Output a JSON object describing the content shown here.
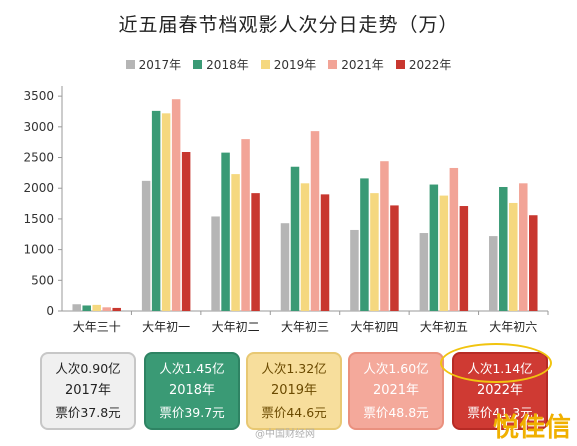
{
  "title": "近五届春节档观影人次分日走势（万）",
  "chart_data": {
    "type": "bar",
    "categories": [
      "大年三十",
      "大年初一",
      "大年初二",
      "大年初三",
      "大年初四",
      "大年初五",
      "大年初六"
    ],
    "series": [
      {
        "name": "2017年",
        "color": "#b5b5b5",
        "values": [
          110,
          2120,
          1540,
          1430,
          1320,
          1270,
          1220
        ]
      },
      {
        "name": "2018年",
        "color": "#3a9a75",
        "values": [
          90,
          3260,
          2580,
          2350,
          2160,
          2060,
          2020
        ]
      },
      {
        "name": "2019年",
        "color": "#f5d87f",
        "values": [
          100,
          3220,
          2230,
          2080,
          1920,
          1880,
          1760
        ]
      },
      {
        "name": "2021年",
        "color": "#f2a497",
        "values": [
          60,
          3450,
          2800,
          2930,
          2440,
          2330,
          2080
        ]
      },
      {
        "name": "2022年",
        "color": "#c8372f",
        "values": [
          50,
          2590,
          1920,
          1900,
          1720,
          1710,
          1560
        ]
      }
    ],
    "y_ticks": [
      0,
      500,
      1000,
      1500,
      2000,
      2500,
      3000,
      3500
    ],
    "ylim": [
      0,
      3600
    ],
    "grid": false,
    "legend": "top"
  },
  "summary_boxes": [
    {
      "style": "gray",
      "line1": "人次0.90亿",
      "line2": "2017年",
      "line3": "票价37.8元"
    },
    {
      "style": "green",
      "line1": "人次1.45亿",
      "line2": "2018年",
      "line3": "票价39.7元"
    },
    {
      "style": "yellow",
      "line1": "人次1.32亿",
      "line2": "2019年",
      "line3": "票价44.6元"
    },
    {
      "style": "pink",
      "line1": "人次1.60亿",
      "line2": "2021年",
      "line3": "票价48.8元"
    },
    {
      "style": "red",
      "line1": "人次1.14亿",
      "line2": "2022年",
      "line3": "票价41.3元"
    }
  ],
  "caption": "@中国财经网",
  "watermark": "悦佳信"
}
